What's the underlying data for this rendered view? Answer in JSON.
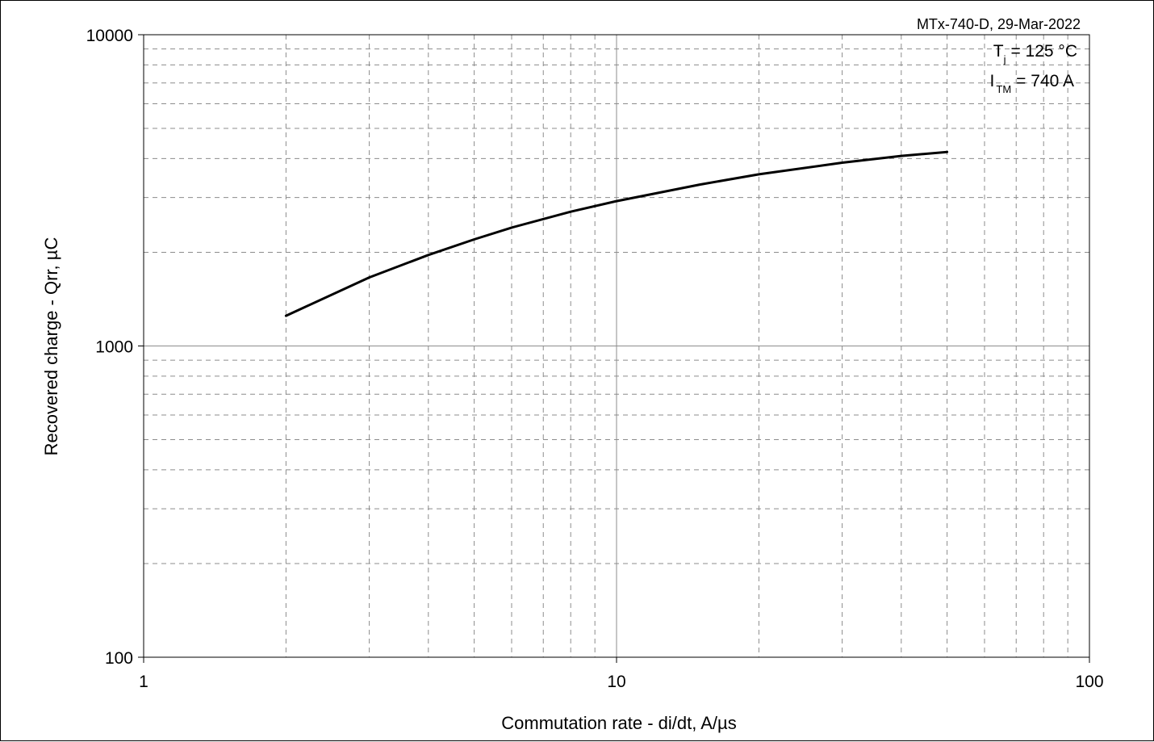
{
  "chart_data": {
    "type": "line",
    "title": "",
    "source_note": "MTx-740-D, 29-Mar-2022",
    "conditions": [
      {
        "symbol": "T",
        "subscript": "j",
        "value": "= 125 °C"
      },
      {
        "symbol": "I",
        "subscript": "TM",
        "value": "= 740 A"
      }
    ],
    "xlabel": "Commutation rate - di/dt, A/µs",
    "ylabel": "Recovered charge - Qrr, µC",
    "xscale": "log",
    "yscale": "log",
    "xlim": [
      1,
      100
    ],
    "ylim": [
      100,
      10000
    ],
    "xticks": [
      "1",
      "10",
      "100"
    ],
    "yticks": [
      "100",
      "1000",
      "10000"
    ],
    "grid": true,
    "legend": "none",
    "series": [
      {
        "x": [
          2,
          3,
          4,
          5,
          6,
          8,
          10,
          15,
          20,
          30,
          40,
          50
        ],
        "y": [
          1250,
          1660,
          1960,
          2200,
          2400,
          2700,
          2920,
          3300,
          3560,
          3880,
          4080,
          4200
        ]
      }
    ],
    "colors": {
      "line": "#000000",
      "grid_major": "#8c8c8c",
      "grid_minor": "#8c8c8c"
    }
  }
}
